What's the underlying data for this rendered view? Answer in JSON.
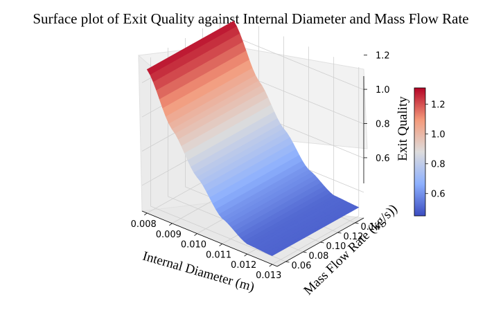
{
  "chart_data": {
    "type": "surface",
    "title": "Surface plot of Exit Quality against Internal Diameter and Mass Flow Rate",
    "xlabel": "Internal Diameter (m)",
    "ylabel": "Mass Flow Rate (kg/s))",
    "zlabel": "Exit Quality",
    "colormap": "coolwarm",
    "x_ticks": [
      "0.008",
      "0.009",
      "0.010",
      "0.011",
      "0.012",
      "0.013"
    ],
    "y_ticks": [
      "0.06",
      "0.08",
      "0.10",
      "0.12",
      "0.14"
    ],
    "z_ticks": [
      "0.6",
      "0.8",
      "1.0",
      "1.2"
    ],
    "colorbar_ticks": [
      "0.6",
      "0.8",
      "1.0",
      "1.2"
    ],
    "xlim": [
      0.0078,
      0.0132
    ],
    "ylim": [
      0.05,
      0.15
    ],
    "zlim": [
      0.45,
      1.32
    ],
    "colorbar_range": [
      0.45,
      1.31
    ],
    "grid": true,
    "surface_profile": {
      "description_free": true,
      "diameter": [
        0.008,
        0.009,
        0.01,
        0.011,
        0.012,
        0.013
      ],
      "exit_quality": [
        1.29,
        1.0,
        0.78,
        0.6,
        0.51,
        0.5
      ]
    }
  }
}
